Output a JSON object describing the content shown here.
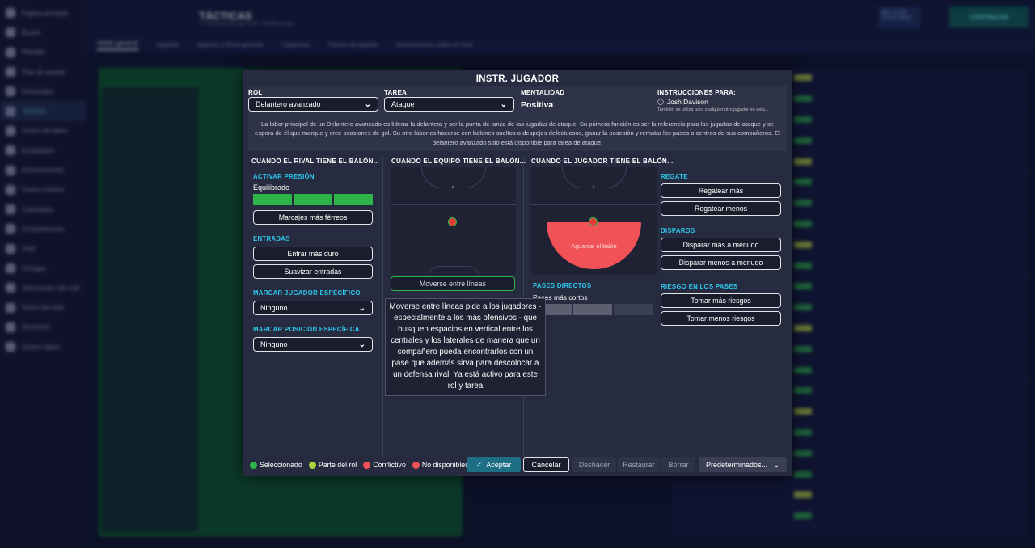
{
  "background": {
    "header_title": "TÁCTICAS",
    "header_sub": "1.ª con 6 pos de Liga; Conv., Plantilla activa, ...",
    "date_line1": "Mié 21:00",
    "date_line2": "13 jun 2023",
    "continue_label": "CONTINUAR",
    "sidebar_items": [
      "Página principal",
      "Buzón",
      "Plantilla",
      "Plan de partido",
      "Entrenador",
      "Tácticas",
      "Centro de datos",
      "Empleados",
      "Entrenamiento",
      "Centro médico",
      "Calendario",
      "Competiciones",
      "Club",
      "Fichajes",
      "Información del club",
      "Visión del club",
      "Directivos",
      "Centro Ojeos"
    ],
    "subnav": [
      "Visión general",
      "Jugador",
      "Ajustes a Nivel general",
      "Capitanes",
      "Planes de partido",
      "Instrucciones sobre el rival"
    ]
  },
  "modal": {
    "title": "INSTR. JUGADOR",
    "role_label": "ROL",
    "role_value": "Delantero avanzado",
    "task_label": "TAREA",
    "task_value": "Ataque",
    "mentality_label": "MENTALIDAD",
    "mentality_value": "Positiva",
    "for_label": "INSTRUCCIONES PARA:",
    "for_player": "Josh Davison",
    "for_note": "También se utiliza para cualquier otro jugador en esta...",
    "description": "La labor principal de un Delantero avanzado es liderar la delantera y ser la punta de lanza de las jugadas de ataque. Su primera función es ser la referencia para las jugadas de ataque y se espera de él que marque y cree ocasiones de gol. Su otra labor es hacerse con balones sueltos o despejes defectuosos, ganar la posesión y rematar los pases o centros de sus compañeros. El delantero avanzado solo está disponible para tarea de ataque.",
    "col1": {
      "title": "CUANDO EL RIVAL TIENE EL BALÓN...",
      "press_label": "ACTIVAR PRESIÓN",
      "press_value": "Equilibrado",
      "press_level": 1.0,
      "tighter_marking": "Marcajes más férreos",
      "tackling_label": "ENTRADAS",
      "tackle_harder": "Entrar más duro",
      "ease_off": "Suavizar entradas",
      "mark_player_label": "MARCAR JUGADOR ESPECÍFICO",
      "mark_player_value": "Ninguno",
      "mark_position_label": "MARCAR POSICIÓN ESPECÍFICA",
      "mark_position_value": "Ninguno"
    },
    "col2": {
      "title": "CUANDO EL EQUIPO TIENE EL BALÓN...",
      "move_between_lines": "Moverse entre líneas"
    },
    "col3": {
      "title": "CUANDO EL JUGADOR TIENE EL BALÓN...",
      "zone_label": "Aguantar el balón",
      "direct_passes_label": "PASES DIRECTOS",
      "direct_passes_value": "Pases más cortos",
      "direct_passes_level": 0.33
    },
    "col4": {
      "dribble_label": "REGATE",
      "dribble_more": "Regatear más",
      "dribble_less": "Regatear menos",
      "shots_label": "DISPAROS",
      "shoot_more": "Disparar más a menudo",
      "shoot_less": "Disparar menos a menudo",
      "risk_label": "RIESGO EN LOS PASES",
      "risk_more": "Tomar más riesgos",
      "risk_less": "Tomar menos riesgos"
    },
    "tooltip": "Moverse entre líneas pide a los jugadores - especialmente a los más ofensivos - que busquen espacios en vertical entre los centrales y los laterales de manera que un compañero pueda encontrarlos con un pase que además sirva para descolocar a un defensa rival. Ya está activo para este rol y tarea",
    "legend": [
      {
        "label": "Seleccionado",
        "color": "#2db54c"
      },
      {
        "label": "Parte del rol",
        "color": "#a9d43a"
      },
      {
        "label": "Conflictivo",
        "color": "#f05257"
      },
      {
        "label": "No disponibles",
        "color": "#f05257"
      }
    ],
    "buttons": {
      "accept": "Aceptar",
      "cancel": "Cancelar",
      "undo": "Deshacer",
      "restore": "Restaurar",
      "clear": "Borrar",
      "defaults": "Predeterminados..."
    }
  },
  "colors": {
    "accent_cyan": "#2ec7ee",
    "selected_green": "#2db54c",
    "accept_teal": "#1d6f86",
    "zone_red": "#f05257"
  }
}
